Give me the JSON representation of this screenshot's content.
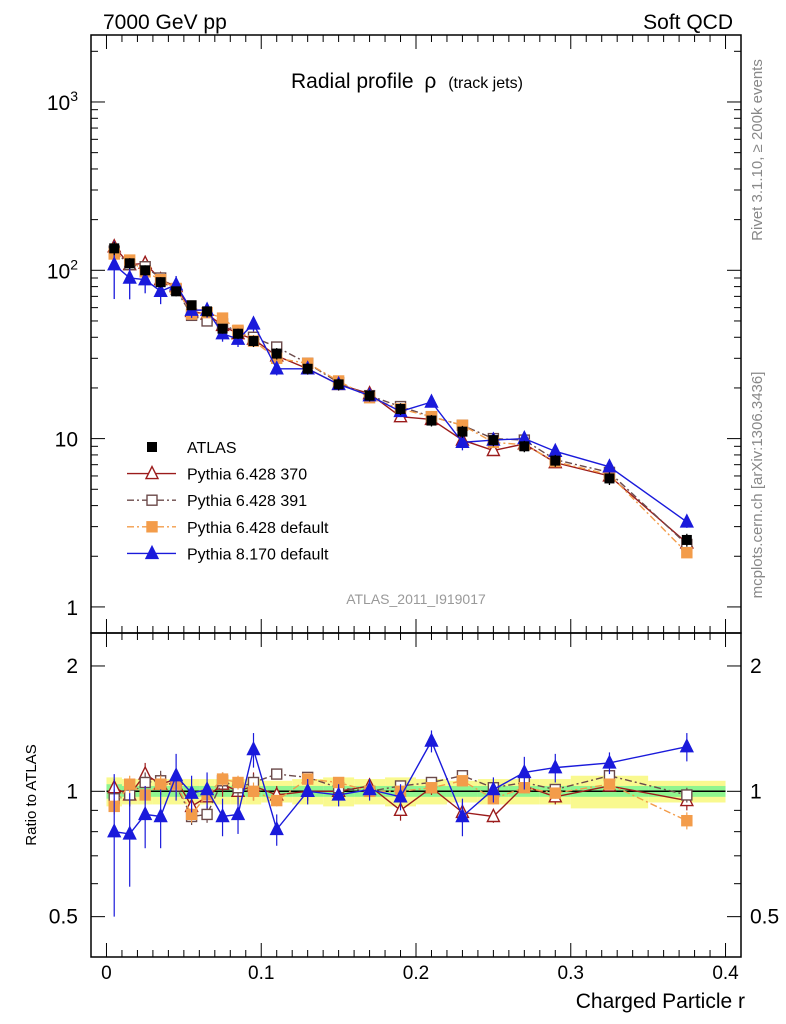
{
  "header": {
    "energy_label": "7000 GeV pp",
    "process_label": "Soft QCD"
  },
  "side_labels": {
    "rivet": "Rivet 3.1.10, ≥ 200k events",
    "mcplots": "mcplots.cern.ch [arXiv:1306.3436]"
  },
  "analysis_id": "ATLAS_2011_I919017",
  "chart_data": {
    "type": "line",
    "title": "Radial profile",
    "title_symbol": "ρ",
    "subtitle": "(track jets)",
    "xlabel": "Charged Particle r",
    "ylabel_main": "",
    "ylabel_ratio": "Ratio to ATLAS",
    "xlim": [
      -0.01,
      0.41
    ],
    "ylim_main": [
      0.7,
      2500
    ],
    "ylim_ratio": [
      0.4,
      2.4
    ],
    "main_yscale": "log",
    "ratio_yscale": "log",
    "x_ticks": [
      {
        "value": 0,
        "label": "0"
      },
      {
        "value": 0.1,
        "label": "0.1"
      },
      {
        "value": 0.2,
        "label": "0.2"
      },
      {
        "value": 0.3,
        "label": "0.3"
      },
      {
        "value": 0.4,
        "label": "0.4"
      }
    ],
    "main_y_ticks": [
      {
        "value": 1,
        "label": "1",
        "sup": ""
      },
      {
        "value": 10,
        "label": "10",
        "sup": ""
      },
      {
        "value": 100,
        "label": "10",
        "sup": "2"
      },
      {
        "value": 1000,
        "label": "10",
        "sup": "3"
      }
    ],
    "ratio_y_ticks": [
      {
        "value": 0.5,
        "label": "0.5"
      },
      {
        "value": 1,
        "label": "1"
      },
      {
        "value": 2,
        "label": "2"
      }
    ],
    "x": [
      0.005,
      0.015,
      0.025,
      0.035,
      0.045,
      0.055,
      0.065,
      0.075,
      0.085,
      0.095,
      0.11,
      0.13,
      0.15,
      0.17,
      0.19,
      0.21,
      0.23,
      0.25,
      0.27,
      0.29,
      0.325,
      0.375
    ],
    "data": {
      "name": "ATLAS",
      "values": [
        135,
        110,
        100,
        85,
        75,
        62,
        57,
        45,
        42,
        38,
        32,
        26,
        21,
        18,
        15,
        12.8,
        11,
        9.8,
        9,
        7.4,
        5.8,
        2.5
      ],
      "err_low": [
        12,
        8,
        7,
        6,
        5,
        4,
        4,
        3,
        3,
        3,
        2.5,
        2,
        1.7,
        1.4,
        1.2,
        1,
        0.9,
        0.8,
        0.7,
        0.6,
        0.5,
        0.22
      ],
      "err_high": [
        12,
        8,
        7,
        6,
        5,
        4,
        4,
        3,
        3,
        3,
        2.5,
        2,
        1.7,
        1.4,
        1.2,
        1,
        0.9,
        0.8,
        0.7,
        0.6,
        0.5,
        0.22
      ]
    },
    "series": [
      {
        "name": "Pythia 6.428 370",
        "color": "#9b1b1b",
        "dash": "solid",
        "marker": "triangle-open",
        "values": [
          138,
          108,
          110,
          88,
          80,
          57,
          55,
          47,
          42,
          39,
          31,
          26,
          21,
          18.5,
          13.5,
          13,
          9.8,
          8.5,
          9.3,
          7.2,
          6,
          2.4
        ],
        "ratio": [
          1.02,
          0.98,
          1.1,
          1.04,
          1.07,
          0.92,
          0.97,
          1.04,
          1.0,
          1.03,
          0.98,
          1.0,
          1.0,
          1.03,
          0.9,
          1.02,
          0.89,
          0.87,
          1.03,
          0.97,
          1.03,
          0.95
        ],
        "ratio_err": [
          0.05,
          0.06,
          0.07,
          0.06,
          0.06,
          0.07,
          0.07,
          0.07,
          0.07,
          0.08,
          0.05,
          0.05,
          0.04,
          0.04,
          0.05,
          0.04,
          0.05,
          0.03,
          0.04,
          0.04,
          0.03,
          0.05
        ]
      },
      {
        "name": "Pythia 6.428 391",
        "color": "#6b4a4a",
        "dash": "dashdot",
        "marker": "square-open",
        "values": [
          130,
          108,
          105,
          90,
          77,
          54,
          50,
          48,
          43,
          40,
          35,
          28,
          21.5,
          18,
          15.5,
          13.5,
          12,
          10,
          9.8,
          7.5,
          6.3,
          2.35
        ],
        "ratio": [
          0.96,
          0.98,
          1.05,
          1.06,
          1.03,
          0.87,
          0.88,
          1.06,
          1.02,
          1.05,
          1.1,
          1.08,
          1.02,
          1.0,
          1.03,
          1.05,
          1.09,
          1.02,
          1.05,
          1.01,
          1.09,
          0.98
        ],
        "ratio_err": [
          0.05,
          0.06,
          0.06,
          0.06,
          0.06,
          0.04,
          0.04,
          0.05,
          0.05,
          0.05,
          0.03,
          0.03,
          0.03,
          0.03,
          0.03,
          0.03,
          0.03,
          0.03,
          0.03,
          0.03,
          0.03,
          0.04
        ]
      },
      {
        "name": "Pythia 6.428 default",
        "color": "#f39c4a",
        "dash": "dashdot",
        "marker": "square-filled",
        "values": [
          125,
          115,
          98,
          88,
          78,
          55,
          56,
          52,
          44,
          38,
          30,
          28,
          22,
          17.5,
          15,
          13.5,
          12,
          9.5,
          9.2,
          7.3,
          6.1,
          2.1
        ],
        "ratio": [
          0.92,
          1.04,
          0.98,
          1.04,
          1.04,
          0.88,
          0.98,
          1.07,
          1.05,
          1.0,
          0.95,
          1.07,
          1.05,
          1.0,
          1.0,
          1.02,
          1.06,
          0.96,
          1.02,
          0.99,
          1.04,
          0.85
        ],
        "ratio_err": [
          0.04,
          0.05,
          0.05,
          0.05,
          0.05,
          0.04,
          0.04,
          0.04,
          0.04,
          0.05,
          0.03,
          0.03,
          0.03,
          0.03,
          0.03,
          0.03,
          0.03,
          0.03,
          0.03,
          0.03,
          0.03,
          0.04
        ]
      },
      {
        "name": "Pythia 8.170 default",
        "color": "#1a1adb",
        "dash": "solid",
        "marker": "triangle-filled",
        "values": [
          108,
          90,
          88,
          75,
          82,
          58,
          58,
          42,
          39,
          48,
          26,
          26,
          21,
          18,
          14.5,
          16.5,
          9.5,
          9.8,
          10,
          8.4,
          6.8,
          3.2
        ],
        "ratio": [
          0.8,
          0.79,
          0.88,
          0.87,
          1.09,
          0.99,
          1.01,
          0.87,
          0.88,
          1.26,
          0.81,
          1.0,
          0.98,
          1.01,
          0.97,
          1.32,
          0.87,
          1.01,
          1.11,
          1.14,
          1.17,
          1.28
        ],
        "ratio_err": [
          0.3,
          0.2,
          0.15,
          0.14,
          0.14,
          0.1,
          0.1,
          0.09,
          0.09,
          0.12,
          0.07,
          0.07,
          0.06,
          0.06,
          0.07,
          0.08,
          0.09,
          0.07,
          0.1,
          0.09,
          0.07,
          0.1
        ]
      }
    ],
    "ratio_band": {
      "x_edges": [
        0,
        0.01,
        0.02,
        0.03,
        0.04,
        0.05,
        0.06,
        0.07,
        0.08,
        0.09,
        0.1,
        0.12,
        0.14,
        0.16,
        0.18,
        0.2,
        0.22,
        0.24,
        0.26,
        0.28,
        0.3,
        0.35,
        0.4
      ],
      "stat_rel": [
        0.04,
        0.03,
        0.03,
        0.03,
        0.03,
        0.03,
        0.03,
        0.03,
        0.03,
        0.03,
        0.03,
        0.03,
        0.03,
        0.03,
        0.03,
        0.03,
        0.03,
        0.03,
        0.03,
        0.03,
        0.03,
        0.03
      ],
      "total_rel": [
        0.08,
        0.07,
        0.07,
        0.07,
        0.07,
        0.07,
        0.07,
        0.07,
        0.07,
        0.07,
        0.06,
        0.07,
        0.08,
        0.07,
        0.08,
        0.07,
        0.06,
        0.07,
        0.07,
        0.07,
        0.09,
        0.06
      ]
    },
    "legend": {
      "placement": "lower-left"
    }
  }
}
